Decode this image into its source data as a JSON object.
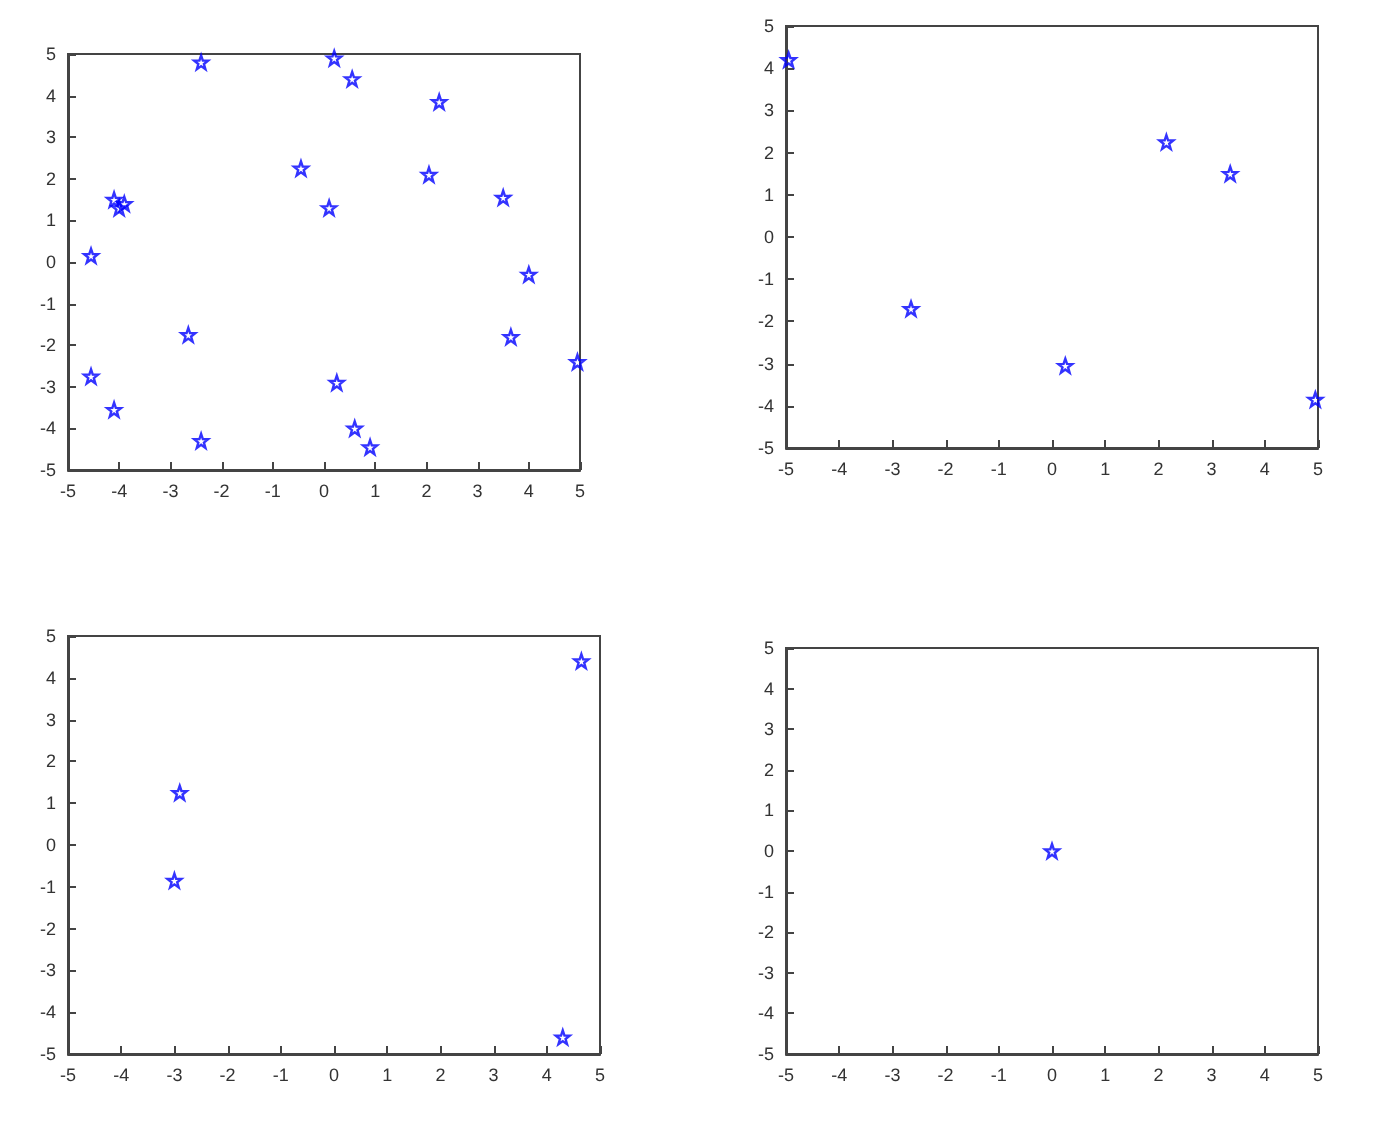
{
  "chart_data": [
    {
      "type": "scatter",
      "color": "#0000ff",
      "marker": "star",
      "grid": false,
      "xlim": [
        -5,
        5
      ],
      "ylim": [
        -5,
        5
      ],
      "xticks": [
        -5,
        -4,
        -3,
        -2,
        -1,
        0,
        1,
        2,
        3,
        4,
        5
      ],
      "yticks": [
        -5,
        -4,
        -3,
        -2,
        -1,
        0,
        1,
        2,
        3,
        4,
        5
      ],
      "x": [
        -2.4,
        0.2,
        0.55,
        2.25,
        -0.45,
        2.05,
        0.1,
        3.5,
        -4.1,
        -4.0,
        -3.9,
        -4.55,
        4.0,
        -2.65,
        3.65,
        4.95,
        -4.55,
        0.25,
        -4.1,
        -2.4,
        0.6,
        0.9
      ],
      "values": [
        4.8,
        4.9,
        4.4,
        3.85,
        2.25,
        2.1,
        1.3,
        1.55,
        1.5,
        1.3,
        1.4,
        0.15,
        -0.3,
        -1.75,
        -1.8,
        -2.4,
        -2.75,
        -2.9,
        -3.55,
        -4.3,
        -4.0,
        -4.45
      ]
    },
    {
      "type": "scatter",
      "color": "#0000ff",
      "marker": "star",
      "grid": false,
      "xlim": [
        -5,
        5
      ],
      "ylim": [
        -5,
        5
      ],
      "xticks": [
        -5,
        -4,
        -3,
        -2,
        -1,
        0,
        1,
        2,
        3,
        4,
        5
      ],
      "yticks": [
        -5,
        -4,
        -3,
        -2,
        -1,
        0,
        1,
        2,
        3,
        4,
        5
      ],
      "x": [
        -4.95,
        2.15,
        3.35,
        -2.65,
        0.25,
        4.95
      ],
      "values": [
        4.2,
        2.25,
        1.5,
        -1.7,
        -3.05,
        -3.85
      ]
    },
    {
      "type": "scatter",
      "color": "#0000ff",
      "marker": "star",
      "grid": false,
      "xlim": [
        -5,
        5
      ],
      "ylim": [
        -5,
        5
      ],
      "xticks": [
        -5,
        -4,
        -3,
        -2,
        -1,
        0,
        1,
        2,
        3,
        4,
        5
      ],
      "yticks": [
        -5,
        -4,
        -3,
        -2,
        -1,
        0,
        1,
        2,
        3,
        4,
        5
      ],
      "x": [
        -2.9,
        -3.0,
        4.3,
        4.65
      ],
      "values": [
        1.25,
        -0.85,
        -4.6,
        4.4
      ]
    },
    {
      "type": "scatter",
      "color": "#0000ff",
      "marker": "star",
      "grid": false,
      "xlim": [
        -5,
        5
      ],
      "ylim": [
        -5,
        5
      ],
      "xticks": [
        -5,
        -4,
        -3,
        -2,
        -1,
        0,
        1,
        2,
        3,
        4,
        5
      ],
      "yticks": [
        -5,
        -4,
        -3,
        -2,
        -1,
        0,
        1,
        2,
        3,
        4,
        5
      ],
      "x": [
        0
      ],
      "values": [
        0
      ]
    }
  ]
}
